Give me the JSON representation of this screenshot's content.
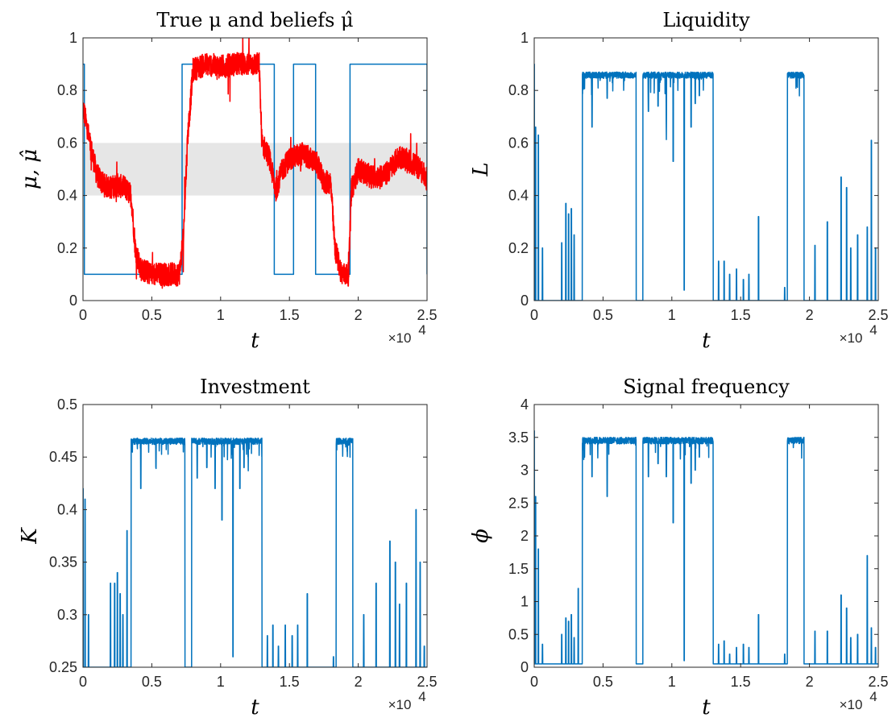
{
  "chart_data": [
    {
      "type": "line",
      "title": "True μ and beliefs μ̂",
      "xlabel": "t",
      "ylabel": "μ, μ̂",
      "xlim": [
        0,
        25000
      ],
      "ylim": [
        0,
        1
      ],
      "x_multiplier": "×10",
      "x_multiplier_exp": "4",
      "xticks": [
        0,
        5000,
        10000,
        15000,
        20000,
        25000
      ],
      "xtick_labels": [
        "0",
        "0.5",
        "1",
        "1.5",
        "2",
        "2.5"
      ],
      "yticks": [
        0,
        0.2,
        0.4,
        0.6,
        0.8,
        1
      ],
      "ytick_labels": [
        "0",
        "0.2",
        "0.4",
        "0.6",
        "0.8",
        "1"
      ],
      "band": {
        "y_from": 0.4,
        "y_to": 0.6,
        "color": "#e6e6e6"
      },
      "series": [
        {
          "color": "#0072bd",
          "step": true,
          "x": [
            0,
            100,
            7200,
            12800,
            13900,
            15300,
            16900,
            19400,
            25000
          ],
          "values": [
            0.9,
            0.1,
            0.9,
            0.9,
            0.1,
            0.9,
            0.1,
            0.9,
            0.1
          ]
        },
        {
          "color": "#ff0000",
          "noise": 0.045,
          "x": [
            0,
            500,
            1000,
            1500,
            2000,
            2500,
            3000,
            3500,
            3800,
            4200,
            5000,
            6000,
            7000,
            7300,
            7600,
            8000,
            9000,
            10000,
            11000,
            12000,
            12800,
            13000,
            13500,
            14000,
            14500,
            15000,
            16000,
            17000,
            17500,
            18000,
            18300,
            18800,
            19300,
            19500,
            20000,
            21000,
            22000,
            23000,
            24000,
            24500,
            25000
          ],
          "values": [
            0.74,
            0.6,
            0.48,
            0.44,
            0.43,
            0.44,
            0.43,
            0.4,
            0.2,
            0.12,
            0.1,
            0.1,
            0.1,
            0.25,
            0.62,
            0.88,
            0.9,
            0.89,
            0.9,
            0.9,
            0.9,
            0.6,
            0.55,
            0.42,
            0.5,
            0.54,
            0.56,
            0.52,
            0.45,
            0.45,
            0.2,
            0.1,
            0.1,
            0.42,
            0.5,
            0.47,
            0.48,
            0.55,
            0.52,
            0.5,
            0.46
          ]
        }
      ]
    },
    {
      "type": "line",
      "title": "Liquidity",
      "xlabel": "t",
      "ylabel": "L",
      "xlim": [
        0,
        25000
      ],
      "ylim": [
        0,
        1
      ],
      "x_multiplier": "×10",
      "x_multiplier_exp": "4",
      "xticks": [
        0,
        5000,
        10000,
        15000,
        20000,
        25000
      ],
      "xtick_labels": [
        "0",
        "0.5",
        "1",
        "1.5",
        "2",
        "2.5"
      ],
      "yticks": [
        0,
        0.2,
        0.4,
        0.6,
        0.8,
        1
      ],
      "ytick_labels": [
        "0",
        "0.2",
        "0.4",
        "0.6",
        "0.8",
        "1"
      ],
      "series": [
        {
          "color": "#0072bd",
          "low": 0,
          "high": 0.87,
          "jitter": 0.012,
          "spikes": [
            [
              0,
              0.9
            ],
            [
              100,
              0.66
            ],
            [
              300,
              0.63
            ],
            [
              600,
              0.2
            ],
            [
              2000,
              0.22
            ],
            [
              2300,
              0.37
            ],
            [
              2500,
              0.33
            ],
            [
              2700,
              0.35
            ],
            [
              2900,
              0.25
            ],
            [
              12900,
              0.2
            ],
            [
              13400,
              0.15
            ],
            [
              13800,
              0.15
            ],
            [
              14200,
              0.1
            ],
            [
              14700,
              0.12
            ],
            [
              15200,
              0.08
            ],
            [
              15600,
              0.1
            ],
            [
              16300,
              0.32
            ],
            [
              18200,
              0.05
            ],
            [
              20400,
              0.21
            ],
            [
              21300,
              0.3
            ],
            [
              22300,
              0.47
            ],
            [
              22700,
              0.43
            ],
            [
              23000,
              0.2
            ],
            [
              23500,
              0.25
            ],
            [
              24200,
              0.28
            ],
            [
              24500,
              0.61
            ],
            [
              24800,
              0.2
            ]
          ],
          "segments": [
            {
              "x_start": 3500,
              "x_end": 7400,
              "level": 0.87
            },
            {
              "x_start": 7900,
              "x_end": 13000,
              "level": 0.87
            },
            {
              "x_start": 18400,
              "x_end": 19600,
              "level": 0.87
            }
          ],
          "dips": [
            [
              4200,
              0.66
            ],
            [
              5300,
              0.77
            ],
            [
              8300,
              0.72
            ],
            [
              9000,
              0.74
            ],
            [
              9600,
              0.68
            ],
            [
              10100,
              0.53
            ],
            [
              10900,
              0.04
            ],
            [
              11400,
              0.66
            ],
            [
              11700,
              0.75
            ],
            [
              12000,
              0.78
            ]
          ]
        }
      ]
    },
    {
      "type": "line",
      "title": "Investment",
      "xlabel": "t",
      "ylabel": "K",
      "xlim": [
        0,
        25000
      ],
      "ylim": [
        0.25,
        0.5
      ],
      "x_multiplier": "×10",
      "x_multiplier_exp": "4",
      "xticks": [
        0,
        5000,
        10000,
        15000,
        20000,
        25000
      ],
      "xtick_labels": [
        "0",
        "0.5",
        "1",
        "1.5",
        "2",
        "2.5"
      ],
      "yticks": [
        0.25,
        0.3,
        0.35,
        0.4,
        0.45,
        0.5
      ],
      "ytick_labels": [
        "0.25",
        "0.3",
        "0.35",
        "0.4",
        "0.45",
        "0.5"
      ],
      "series": [
        {
          "color": "#0072bd",
          "low": 0.25,
          "high": 0.468,
          "jitter": 0.003,
          "spikes": [
            [
              0,
              0.42
            ],
            [
              150,
              0.41
            ],
            [
              400,
              0.3
            ],
            [
              2000,
              0.33
            ],
            [
              2300,
              0.33
            ],
            [
              2500,
              0.34
            ],
            [
              2700,
              0.32
            ],
            [
              2900,
              0.3
            ],
            [
              3200,
              0.38
            ],
            [
              12900,
              0.29
            ],
            [
              13400,
              0.28
            ],
            [
              13800,
              0.29
            ],
            [
              14200,
              0.27
            ],
            [
              14700,
              0.29
            ],
            [
              15200,
              0.28
            ],
            [
              15600,
              0.29
            ],
            [
              16300,
              0.32
            ],
            [
              18200,
              0.26
            ],
            [
              20400,
              0.3
            ],
            [
              21300,
              0.33
            ],
            [
              22300,
              0.37
            ],
            [
              22700,
              0.35
            ],
            [
              23000,
              0.31
            ],
            [
              23500,
              0.33
            ],
            [
              24200,
              0.4
            ],
            [
              24500,
              0.35
            ],
            [
              24800,
              0.27
            ]
          ],
          "segments": [
            {
              "x_start": 3500,
              "x_end": 7400,
              "level": 0.468
            },
            {
              "x_start": 7900,
              "x_end": 13000,
              "level": 0.468
            },
            {
              "x_start": 18400,
              "x_end": 19600,
              "level": 0.468
            }
          ],
          "dips": [
            [
              4200,
              0.42
            ],
            [
              5300,
              0.44
            ],
            [
              8300,
              0.43
            ],
            [
              9000,
              0.44
            ],
            [
              9600,
              0.42
            ],
            [
              10100,
              0.39
            ],
            [
              10900,
              0.26
            ],
            [
              11400,
              0.42
            ],
            [
              11700,
              0.44
            ],
            [
              12000,
              0.45
            ]
          ]
        }
      ]
    },
    {
      "type": "line",
      "title": "Signal frequency",
      "xlabel": "t",
      "ylabel": "ϕ",
      "xlim": [
        0,
        25000
      ],
      "ylim": [
        0,
        4
      ],
      "x_multiplier": "×10",
      "x_multiplier_exp": "4",
      "xticks": [
        0,
        5000,
        10000,
        15000,
        20000,
        25000
      ],
      "xtick_labels": [
        "0",
        "0.5",
        "1",
        "1.5",
        "2",
        "2.5"
      ],
      "yticks": [
        0,
        0.5,
        1,
        1.5,
        2,
        2.5,
        3,
        3.5,
        4
      ],
      "ytick_labels": [
        "0",
        "0.5",
        "1",
        "1.5",
        "2",
        "2.5",
        "3",
        "3.5",
        "4"
      ],
      "series": [
        {
          "color": "#0072bd",
          "low": 0.05,
          "high": 3.5,
          "jitter": 0.05,
          "spikes": [
            [
              0,
              3.6
            ],
            [
              100,
              2.6
            ],
            [
              300,
              1.8
            ],
            [
              600,
              0.35
            ],
            [
              2000,
              0.5
            ],
            [
              2300,
              0.75
            ],
            [
              2500,
              0.7
            ],
            [
              2700,
              0.8
            ],
            [
              2900,
              0.45
            ],
            [
              3200,
              1.2
            ],
            [
              12900,
              0.45
            ],
            [
              13400,
              0.35
            ],
            [
              13800,
              0.4
            ],
            [
              14200,
              0.2
            ],
            [
              14700,
              0.3
            ],
            [
              15200,
              0.35
            ],
            [
              15600,
              0.3
            ],
            [
              16300,
              0.8
            ],
            [
              18200,
              0.2
            ],
            [
              20400,
              0.55
            ],
            [
              21300,
              0.55
            ],
            [
              22300,
              1.1
            ],
            [
              22700,
              0.9
            ],
            [
              23000,
              0.45
            ],
            [
              23500,
              0.5
            ],
            [
              24200,
              1.7
            ],
            [
              24500,
              0.6
            ],
            [
              24800,
              0.3
            ]
          ],
          "segments": [
            {
              "x_start": 3500,
              "x_end": 7400,
              "level": 3.5
            },
            {
              "x_start": 7900,
              "x_end": 13000,
              "level": 3.5
            },
            {
              "x_start": 18400,
              "x_end": 19600,
              "level": 3.5
            }
          ],
          "dips": [
            [
              4200,
              2.9
            ],
            [
              5300,
              2.6
            ],
            [
              8300,
              2.9
            ],
            [
              9000,
              3.1
            ],
            [
              9600,
              2.9
            ],
            [
              10100,
              2.2
            ],
            [
              10900,
              0.1
            ],
            [
              11400,
              2.8
            ],
            [
              11700,
              3.0
            ],
            [
              12000,
              3.2
            ]
          ]
        }
      ]
    }
  ]
}
